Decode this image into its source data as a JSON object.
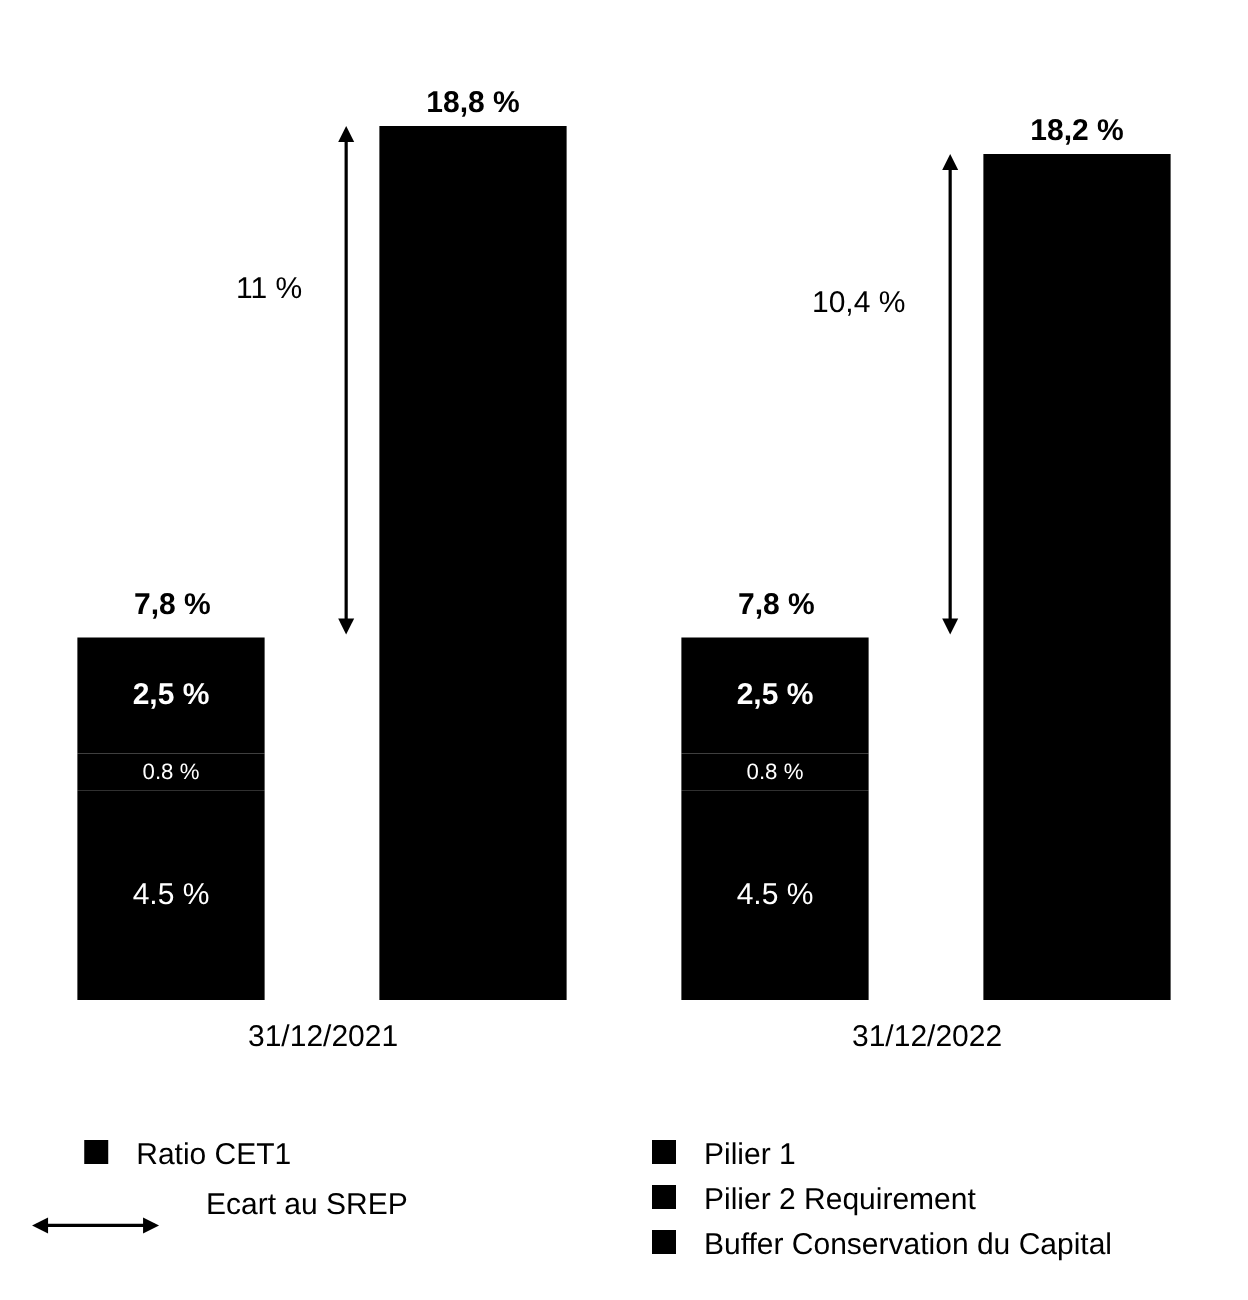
{
  "chart_data": {
    "type": "bar",
    "categories": [
      null,
      null,
      null,
      null
    ],
    "stacked": true,
    "series": [
      {
        "name": "Pilier 1",
        "color": "#000000",
        "values": [
          4.5,
          null,
          4.5,
          null
        ],
        "value_labels": [
          "4.5 %",
          null,
          "4.5 %",
          null
        ]
      },
      {
        "name": "Pilier 2 Requirement",
        "color": "#000000",
        "values": [
          0.8,
          null,
          0.8,
          null
        ],
        "value_labels": [
          "0.8 %",
          null,
          "0.8 %",
          null
        ]
      },
      {
        "name": "Buffer Conservation du Capital",
        "color": "#000000",
        "values": [
          2.5,
          null,
          2.5,
          null
        ],
        "value_labels": [
          "2,5 %",
          null,
          "2,5 %",
          null
        ]
      },
      {
        "name": "Ratio CET1",
        "color": "#000000",
        "values": [
          null,
          18.8,
          null,
          18.2
        ],
        "value_labels": [
          null,
          "18,8 %",
          null,
          "18,2 %"
        ]
      }
    ],
    "totals": [
      "7,8 %",
      null,
      "7,8 %",
      null
    ],
    "annotations": [
      "11 %",
      "10,4 %",
      "31/12/2021",
      "31/12/2022",
      "Ecart au SREP"
    ],
    "legend": "bottom"
  }
}
